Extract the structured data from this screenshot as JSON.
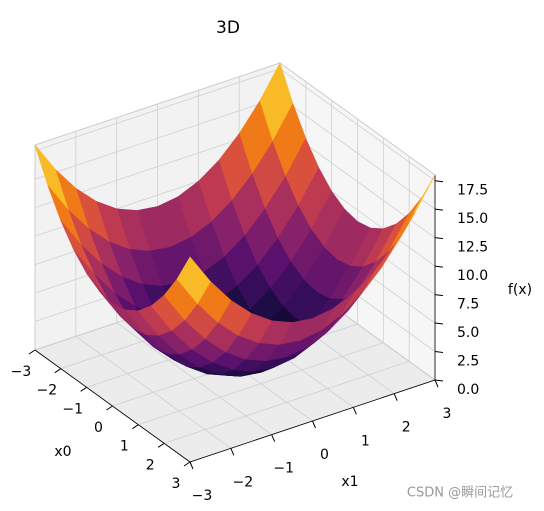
{
  "chart_data": {
    "type": "surface",
    "title": "3D",
    "xlabel": "x0",
    "ylabel": "x1",
    "zlabel": "f(x)",
    "colormap": "inferno",
    "watermark": "CSDN @瞬间记忆",
    "x": [
      -3,
      -2.5,
      -2,
      -1.5,
      -1,
      -0.5,
      0,
      0.5,
      1,
      1.5,
      2,
      2.5,
      3
    ],
    "y": [
      -3,
      -2.5,
      -2,
      -1.5,
      -1,
      -0.5,
      0,
      0.5,
      1,
      1.5,
      2,
      2.5,
      3
    ],
    "z": [
      [
        18,
        15.25,
        13,
        11.25,
        10,
        9.25,
        9,
        9.25,
        10,
        11.25,
        13,
        15.25,
        18
      ],
      [
        15.25,
        12.5,
        10.25,
        8.5,
        7.25,
        6.5,
        6.25,
        6.5,
        7.25,
        8.5,
        10.25,
        12.5,
        15.25
      ],
      [
        13,
        10.25,
        8,
        6.25,
        5,
        4.25,
        4,
        4.25,
        5,
        6.25,
        8,
        10.25,
        13
      ],
      [
        11.25,
        8.5,
        6.25,
        4.5,
        3.25,
        2.5,
        2.25,
        2.5,
        3.25,
        4.5,
        6.25,
        8.5,
        11.25
      ],
      [
        10,
        7.25,
        5,
        3.25,
        2,
        1.25,
        1,
        1.25,
        2,
        3.25,
        5,
        7.25,
        10
      ],
      [
        9.25,
        6.5,
        4.25,
        2.5,
        1.25,
        0.5,
        0.25,
        0.5,
        1.25,
        2.5,
        4.25,
        6.5,
        9.25
      ],
      [
        9,
        6.25,
        4,
        2.25,
        1,
        0.25,
        0,
        0.25,
        1,
        2.25,
        4,
        6.25,
        9
      ],
      [
        9.25,
        6.5,
        4.25,
        2.5,
        1.25,
        0.5,
        0.25,
        0.5,
        1.25,
        2.5,
        4.25,
        6.5,
        9.25
      ],
      [
        10,
        7.25,
        5,
        3.25,
        2,
        1.25,
        1,
        1.25,
        2,
        3.25,
        5,
        7.25,
        10
      ],
      [
        11.25,
        8.5,
        6.25,
        4.5,
        3.25,
        2.5,
        2.25,
        2.5,
        3.25,
        4.5,
        6.25,
        8.5,
        11.25
      ],
      [
        13,
        10.25,
        8,
        6.25,
        5,
        4.25,
        4,
        4.25,
        5,
        6.25,
        8,
        10.25,
        13
      ],
      [
        15.25,
        12.5,
        10.25,
        8.5,
        7.25,
        6.5,
        6.25,
        6.5,
        7.25,
        8.5,
        10.25,
        12.5,
        15.25
      ],
      [
        18,
        15.25,
        13,
        11.25,
        10,
        9.25,
        9,
        9.25,
        10,
        11.25,
        13,
        15.25,
        18
      ]
    ],
    "xlim": [
      -3,
      3
    ],
    "ylim": [
      -3,
      3
    ],
    "zlim": [
      0,
      18
    ],
    "xticks": [
      {
        "value": -3,
        "label": "−3"
      },
      {
        "value": -2,
        "label": "−2"
      },
      {
        "value": -1,
        "label": "−1"
      },
      0,
      1,
      2,
      3
    ],
    "yticks": [
      {
        "value": -3,
        "label": "−3"
      },
      {
        "value": -2,
        "label": "−2"
      },
      {
        "value": -1,
        "label": "−1"
      },
      0,
      1,
      2,
      3
    ],
    "zticks": [
      {
        "value": 0,
        "label": "0.0"
      },
      2.5,
      {
        "value": 5,
        "label": "5.0"
      },
      7.5,
      {
        "value": 10,
        "label": "10.0"
      },
      12.5,
      {
        "value": 15,
        "label": "15.0"
      },
      17.5
    ],
    "grid": true
  }
}
